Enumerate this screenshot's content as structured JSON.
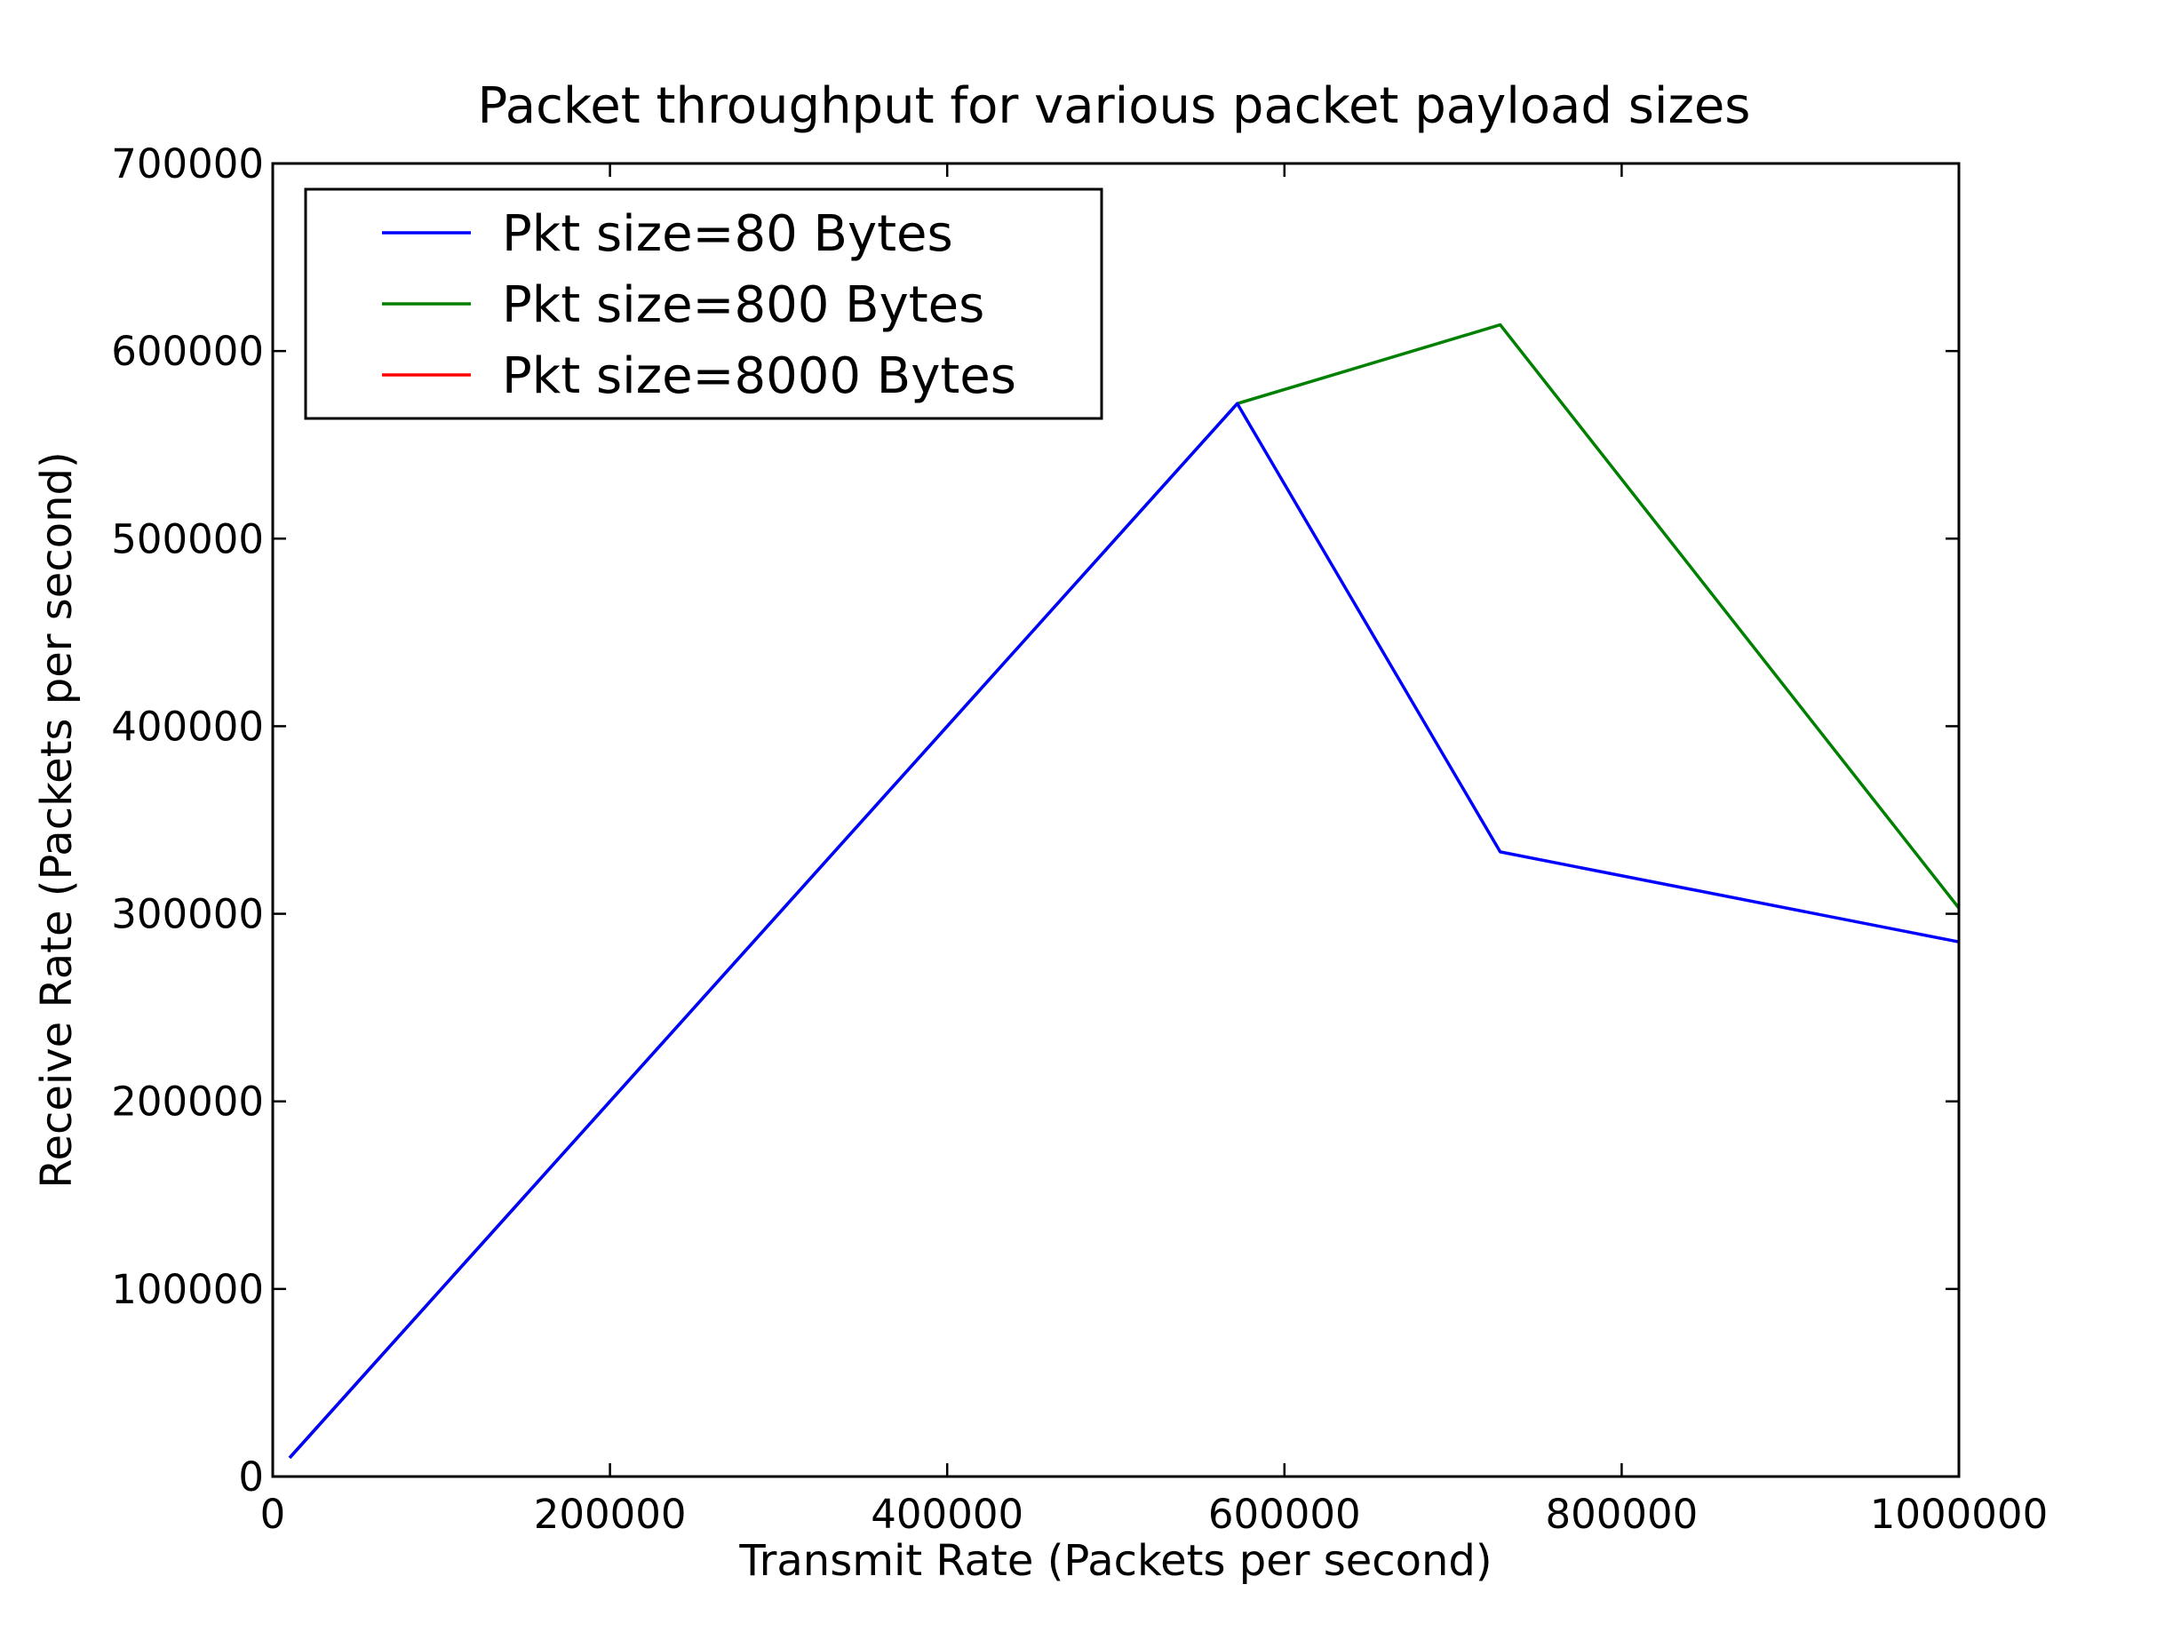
{
  "chart_data": {
    "type": "line",
    "title": "Packet throughput for various packet payload sizes",
    "xlabel": "Transmit Rate (Packets per second)",
    "ylabel": "Receive Rate (Packets per second)",
    "xlim": [
      0,
      1000000
    ],
    "ylim": [
      0,
      700000
    ],
    "xticks": [
      0,
      200000,
      400000,
      600000,
      800000,
      1000000
    ],
    "yticks": [
      0,
      100000,
      200000,
      300000,
      400000,
      500000,
      600000,
      700000
    ],
    "xtick_labels": [
      "0",
      "200000",
      "400000",
      "600000",
      "800000",
      "1000000"
    ],
    "ytick_labels": [
      "0",
      "100000",
      "200000",
      "300000",
      "400000",
      "500000",
      "600000",
      "700000"
    ],
    "grid": false,
    "legend_position": "top-left",
    "series": [
      {
        "name": "Pkt size=80 Bytes",
        "color": "#0000ff",
        "x": [
          10000,
          150000,
          572000,
          728000,
          1000000
        ],
        "y": [
          10000,
          150000,
          572000,
          333000,
          285000
        ]
      },
      {
        "name": "Pkt size=800 Bytes",
        "color": "#008000",
        "x": [
          10000,
          150000,
          572000,
          728000,
          1000000
        ],
        "y": [
          10000,
          150000,
          572000,
          614000,
          303000
        ]
      },
      {
        "name": "Pkt size=8000 Bytes",
        "color": "#ff0000",
        "x": [
          10000,
          150000
        ],
        "y": [
          10000,
          150000
        ]
      }
    ]
  }
}
